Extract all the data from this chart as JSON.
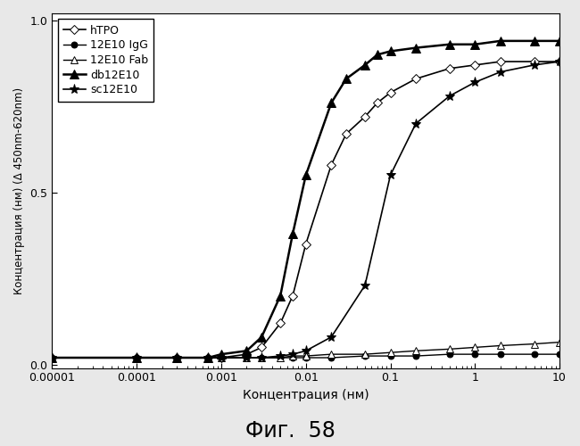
{
  "xlabel": "Концентрация (нм)",
  "ylabel": "Концентрация (нм) (Δ 450nm-620nm)",
  "xlim": [
    1e-05,
    10
  ],
  "ylim": [
    -0.01,
    1.02
  ],
  "yticks": [
    0,
    0.5,
    1
  ],
  "figure_caption": "Фиг.  58",
  "series": {
    "hTPO": {
      "x": [
        1e-05,
        0.0001,
        0.0003,
        0.0007,
        0.001,
        0.002,
        0.003,
        0.005,
        0.007,
        0.01,
        0.02,
        0.03,
        0.05,
        0.07,
        0.1,
        0.2,
        0.5,
        1,
        2,
        5,
        10
      ],
      "y": [
        0.02,
        0.02,
        0.02,
        0.02,
        0.02,
        0.03,
        0.05,
        0.12,
        0.2,
        0.35,
        0.58,
        0.67,
        0.72,
        0.76,
        0.79,
        0.83,
        0.86,
        0.87,
        0.88,
        0.88,
        0.88
      ],
      "marker": "D",
      "markersize": 5,
      "markerfacecolor": "white",
      "color": "black",
      "linewidth": 1.2,
      "linestyle": "-",
      "label": "hTPO"
    },
    "12E10 IgG": {
      "x": [
        1e-05,
        0.0001,
        0.0003,
        0.0007,
        0.001,
        0.002,
        0.003,
        0.005,
        0.007,
        0.01,
        0.02,
        0.05,
        0.1,
        0.2,
        0.5,
        1,
        2,
        5,
        10
      ],
      "y": [
        0.02,
        0.02,
        0.02,
        0.02,
        0.02,
        0.02,
        0.02,
        0.02,
        0.02,
        0.02,
        0.02,
        0.025,
        0.025,
        0.025,
        0.03,
        0.03,
        0.03,
        0.03,
        0.03
      ],
      "marker": "o",
      "markersize": 5,
      "markerfacecolor": "black",
      "color": "black",
      "linewidth": 1.0,
      "linestyle": "-",
      "label": "12E10 IgG"
    },
    "12E10 Fab": {
      "x": [
        1e-05,
        0.0001,
        0.0003,
        0.0007,
        0.001,
        0.002,
        0.003,
        0.005,
        0.007,
        0.01,
        0.02,
        0.05,
        0.1,
        0.2,
        0.5,
        1,
        2,
        5,
        10
      ],
      "y": [
        0.02,
        0.02,
        0.02,
        0.02,
        0.02,
        0.02,
        0.02,
        0.02,
        0.025,
        0.025,
        0.03,
        0.03,
        0.035,
        0.04,
        0.045,
        0.05,
        0.055,
        0.06,
        0.065
      ],
      "marker": "^",
      "markersize": 6,
      "markerfacecolor": "white",
      "color": "black",
      "linewidth": 1.0,
      "linestyle": "-",
      "label": "12E10 Fab"
    },
    "db12E10": {
      "x": [
        1e-05,
        0.0001,
        0.0003,
        0.0007,
        0.001,
        0.002,
        0.003,
        0.005,
        0.007,
        0.01,
        0.02,
        0.03,
        0.05,
        0.07,
        0.1,
        0.2,
        0.5,
        1,
        2,
        5,
        10
      ],
      "y": [
        0.02,
        0.02,
        0.02,
        0.02,
        0.03,
        0.04,
        0.08,
        0.2,
        0.38,
        0.55,
        0.76,
        0.83,
        0.87,
        0.9,
        0.91,
        0.92,
        0.93,
        0.93,
        0.94,
        0.94,
        0.94
      ],
      "marker": "^",
      "markersize": 7,
      "markerfacecolor": "black",
      "color": "black",
      "linewidth": 1.8,
      "linestyle": "-",
      "label": "db12E10"
    },
    "sc12E10": {
      "x": [
        1e-05,
        0.0001,
        0.0003,
        0.0007,
        0.001,
        0.002,
        0.003,
        0.005,
        0.007,
        0.01,
        0.02,
        0.05,
        0.1,
        0.2,
        0.5,
        1,
        2,
        5,
        10
      ],
      "y": [
        0.02,
        0.02,
        0.02,
        0.02,
        0.02,
        0.02,
        0.02,
        0.025,
        0.03,
        0.04,
        0.08,
        0.23,
        0.55,
        0.7,
        0.78,
        0.82,
        0.85,
        0.87,
        0.88
      ],
      "marker": "*",
      "markersize": 8,
      "markerfacecolor": "black",
      "color": "black",
      "linewidth": 1.2,
      "linestyle": "-",
      "label": "sc12E10"
    }
  }
}
